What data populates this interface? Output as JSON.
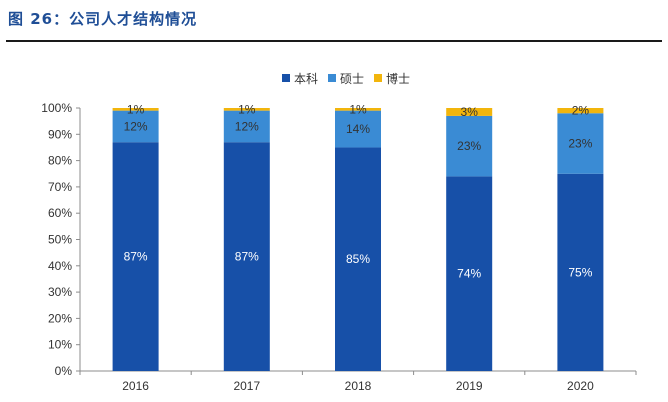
{
  "figure": {
    "title": "图 26：公司人才结构情况"
  },
  "colors": {
    "本科": "#1750a8",
    "硕士": "#3a8bd4",
    "博士": "#f2b50c"
  },
  "chart_data": {
    "type": "bar",
    "stacked": true,
    "title": "",
    "xlabel": "",
    "ylabel": "",
    "categories": [
      "2016",
      "2017",
      "2018",
      "2019",
      "2020"
    ],
    "series": [
      {
        "name": "本科",
        "values": [
          87,
          87,
          85,
          74,
          75
        ],
        "labels": [
          "87%",
          "87%",
          "85%",
          "74%",
          "75%"
        ]
      },
      {
        "name": "硕士",
        "values": [
          12,
          12,
          14,
          23,
          23
        ],
        "labels": [
          "12%",
          "12%",
          "14%",
          "23%",
          "23%"
        ]
      },
      {
        "name": "博士",
        "values": [
          1,
          1,
          1,
          3,
          2
        ],
        "labels": [
          "1%",
          "1%",
          "1%",
          "3%",
          "2%"
        ]
      }
    ],
    "ylim": [
      0,
      100
    ],
    "yticks": [
      "0%",
      "10%",
      "20%",
      "30%",
      "40%",
      "50%",
      "60%",
      "70%",
      "80%",
      "90%",
      "100%"
    ],
    "legend_position": "top-center",
    "grid": false
  }
}
